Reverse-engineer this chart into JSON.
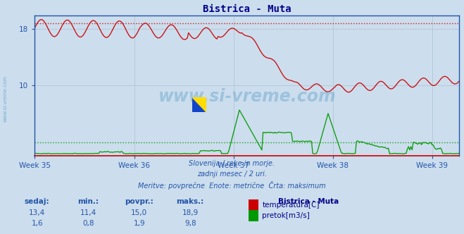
{
  "title": "Bistrica - Muta",
  "background_color": "#ccdded",
  "plot_bg_color": "#ccdded",
  "grid_color": "#aabfd0",
  "x_tick_labels": [
    "Week 35",
    "Week 36",
    "Week 37",
    "Week 38",
    "Week 39"
  ],
  "x_tick_positions": [
    0,
    84,
    168,
    252,
    336
  ],
  "ylim": [
    0,
    20
  ],
  "y_ticks": [
    10,
    18
  ],
  "temp_color": "#cc0000",
  "flow_color": "#009900",
  "temp_max_line": 18.9,
  "flow_avg_line": 1.9,
  "subtitle_lines": [
    "Slovenija / reke in morje.",
    "zadnji mesec / 2 uri.",
    "Meritve: povprečne  Enote: metrične  Črta: maksimum"
  ],
  "table_headers": [
    "sedaj:",
    "min.:",
    "povpr.:",
    "maks.:",
    "Bistrica - Muta"
  ],
  "table_row1": [
    "13,4",
    "11,4",
    "15,0",
    "18,9"
  ],
  "table_row2": [
    "1,6",
    "0,8",
    "1,9",
    "9,8"
  ],
  "label_temp": "temperatura[C]",
  "label_flow": "pretok[m3/s]",
  "watermark_plot": "www.si-vreme.com",
  "watermark_side": "www.si-vreme.com",
  "n_points": 360
}
